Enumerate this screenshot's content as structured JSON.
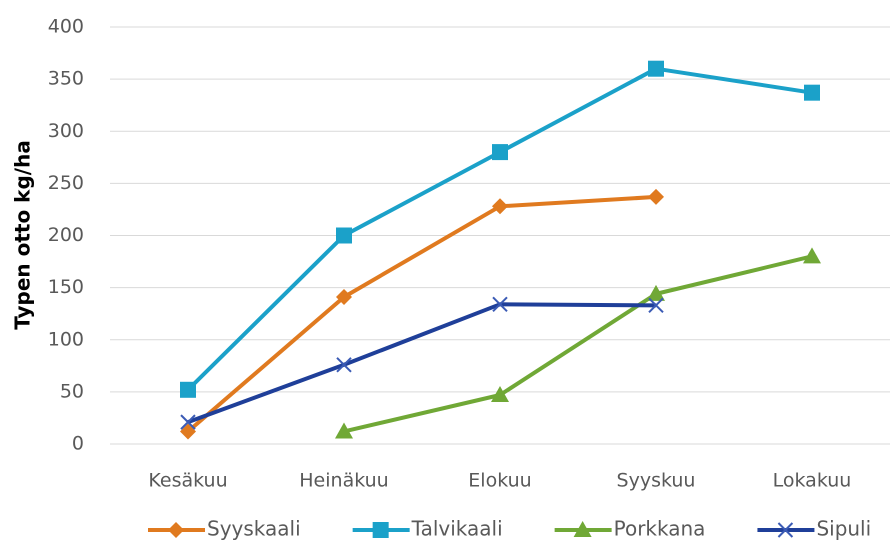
{
  "chart_data": {
    "type": "line",
    "y_label": "Typen otto kg/ha",
    "categories": [
      "Kesäkuu",
      "Heinäkuu",
      "Elokuu",
      "Syyskuu",
      "Lokakuu"
    ],
    "series": [
      {
        "name": "Syyskaali",
        "color": "#e07a1f",
        "marker": "diamond",
        "values": [
          12,
          141,
          228,
          237,
          null
        ]
      },
      {
        "name": "Talvikaali",
        "color": "#1ba1c9",
        "marker": "square",
        "values": [
          52,
          200,
          280,
          360,
          337
        ]
      },
      {
        "name": "Porkkana",
        "color": "#70a836",
        "marker": "triangle",
        "values": [
          null,
          12,
          47,
          144,
          180
        ]
      },
      {
        "name": "Sipuli",
        "color": "#1f3f99",
        "marker": "x",
        "values": [
          21,
          76,
          134,
          133,
          null
        ]
      }
    ],
    "ylim": [
      0,
      400
    ],
    "yticks": [
      0,
      50,
      100,
      150,
      200,
      250,
      300,
      350,
      400
    ],
    "grid": true,
    "legend": "bottom"
  }
}
